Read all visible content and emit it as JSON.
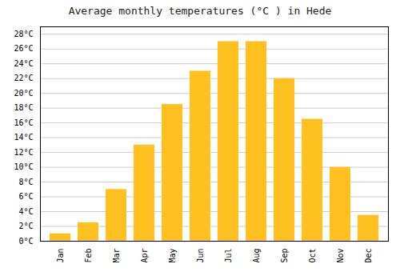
{
  "chart_data": {
    "type": "bar",
    "title": "Average monthly temperatures (°C ) in Hede",
    "categories": [
      "Jan",
      "Feb",
      "Mar",
      "Apr",
      "May",
      "Jun",
      "Jul",
      "Aug",
      "Sep",
      "Oct",
      "Nov",
      "Dec"
    ],
    "values": [
      1.0,
      2.5,
      7.0,
      13.0,
      18.5,
      23.0,
      27.0,
      27.0,
      22.0,
      16.5,
      10.0,
      3.5
    ],
    "color": "#FFC020",
    "ylim": [
      0,
      29
    ],
    "yticks": [
      {
        "value": 0,
        "label": "0°C"
      },
      {
        "value": 2,
        "label": "2°C"
      },
      {
        "value": 4,
        "label": "4°C"
      },
      {
        "value": 6,
        "label": "6°C"
      },
      {
        "value": 8,
        "label": "8°C"
      },
      {
        "value": 10,
        "label": "10°C"
      },
      {
        "value": 12,
        "label": "12°C"
      },
      {
        "value": 14,
        "label": "14°C"
      },
      {
        "value": 16,
        "label": "16°C"
      },
      {
        "value": 18,
        "label": "18°C"
      },
      {
        "value": 20,
        "label": "20°C"
      },
      {
        "value": 22,
        "label": "22°C"
      },
      {
        "value": 24,
        "label": "24°C"
      },
      {
        "value": 26,
        "label": "26°C"
      },
      {
        "value": 28,
        "label": "28°C"
      }
    ],
    "grid": true
  }
}
